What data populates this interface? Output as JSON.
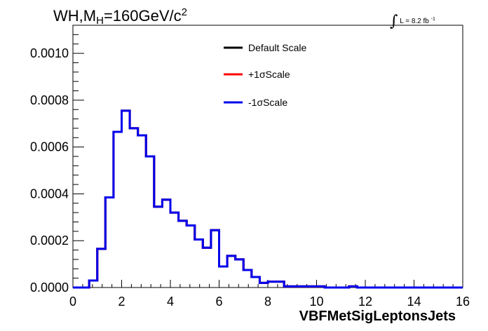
{
  "header": {
    "title_main": "WH,M",
    "title_sub": "H",
    "title_rest": "=160GeV/c",
    "title_sup": "2",
    "lumi_integral": "∫",
    "lumi_text": "L = 8.2 fb",
    "lumi_sup": "-1"
  },
  "colors": {
    "default": "#000000",
    "plus": "#ff0000",
    "minus": "#0000ee",
    "frame": "#000000",
    "background": "#ffffff"
  },
  "chart_data": {
    "type": "line",
    "histogram": true,
    "title": "WH,MH=160GeV/c 2",
    "xlabel": "VBFMetSigLeptonsJets",
    "ylabel": "",
    "xlim": [
      0,
      16
    ],
    "ylim": [
      0,
      0.00112
    ],
    "grid": false,
    "legend_position": "top-center",
    "x_ticks": [
      0,
      2,
      4,
      6,
      8,
      10,
      12,
      14,
      16
    ],
    "x_tick_labels": [
      "0",
      "2",
      "4",
      "6",
      "8",
      "10",
      "12",
      "14",
      "16"
    ],
    "y_ticks": [
      0,
      0.0002,
      0.0004,
      0.0006,
      0.0008,
      0.001
    ],
    "y_tick_labels": [
      "0.0000",
      "0.0002",
      "0.0004",
      "0.0006",
      "0.0008",
      "0.0010"
    ],
    "bin_edges": [
      0,
      0.333,
      0.667,
      1,
      1.333,
      1.667,
      2,
      2.333,
      2.667,
      3,
      3.333,
      3.667,
      4,
      4.333,
      4.667,
      5,
      5.333,
      5.667,
      6,
      6.333,
      6.667,
      7,
      7.333,
      7.667,
      8,
      8.333,
      8.667,
      9,
      9.333,
      9.667,
      10,
      10.333,
      10.667,
      11,
      11.333,
      11.667,
      12,
      12.333,
      12.667,
      13,
      13.333,
      13.667,
      14,
      14.333,
      14.667,
      15,
      15.333,
      15.667,
      16
    ],
    "series": [
      {
        "name": "Default Scale",
        "color": "#000000",
        "values": [
          0,
          0,
          3e-05,
          0.000165,
          0.000385,
          0.000665,
          0.000755,
          0.00068,
          0.00065,
          0.00056,
          0.000345,
          0.000375,
          0.00032,
          0.000285,
          0.000265,
          0.000205,
          0.00017,
          0.000245,
          9e-05,
          0.000135,
          0.00012,
          7.5e-05,
          4.5e-05,
          2e-05,
          2.5e-05,
          2.5e-05,
          5e-06,
          5e-06,
          5e-06,
          5e-06,
          5e-06,
          0,
          0,
          0,
          5e-06,
          0,
          0,
          0,
          0,
          0,
          0,
          0,
          0,
          0,
          0,
          0,
          0,
          0
        ]
      },
      {
        "name": "+1σScale",
        "color": "#ff0000",
        "values": [
          0,
          0,
          3e-05,
          0.000165,
          0.000385,
          0.000665,
          0.000755,
          0.00068,
          0.00065,
          0.00056,
          0.000345,
          0.000375,
          0.00032,
          0.000285,
          0.000265,
          0.000205,
          0.00017,
          0.000245,
          9e-05,
          0.000135,
          0.00012,
          7.5e-05,
          4.5e-05,
          2e-05,
          2.5e-05,
          2.5e-05,
          5e-06,
          5e-06,
          5e-06,
          5e-06,
          5e-06,
          0,
          0,
          0,
          5e-06,
          0,
          0,
          0,
          0,
          0,
          0,
          0,
          0,
          0,
          0,
          0,
          0,
          0
        ]
      },
      {
        "name": "-1σScale",
        "color": "#0000ee",
        "values": [
          0,
          0,
          3e-05,
          0.000165,
          0.000385,
          0.000665,
          0.000755,
          0.00068,
          0.00065,
          0.00056,
          0.000345,
          0.000375,
          0.00032,
          0.000285,
          0.000265,
          0.000205,
          0.00017,
          0.000245,
          9e-05,
          0.000135,
          0.00012,
          7.5e-05,
          4.5e-05,
          2e-05,
          2.5e-05,
          2.5e-05,
          5e-06,
          5e-06,
          5e-06,
          5e-06,
          5e-06,
          0,
          0,
          0,
          5e-06,
          0,
          0,
          0,
          0,
          0,
          0,
          0,
          0,
          0,
          0,
          0,
          0,
          0
        ]
      }
    ]
  }
}
